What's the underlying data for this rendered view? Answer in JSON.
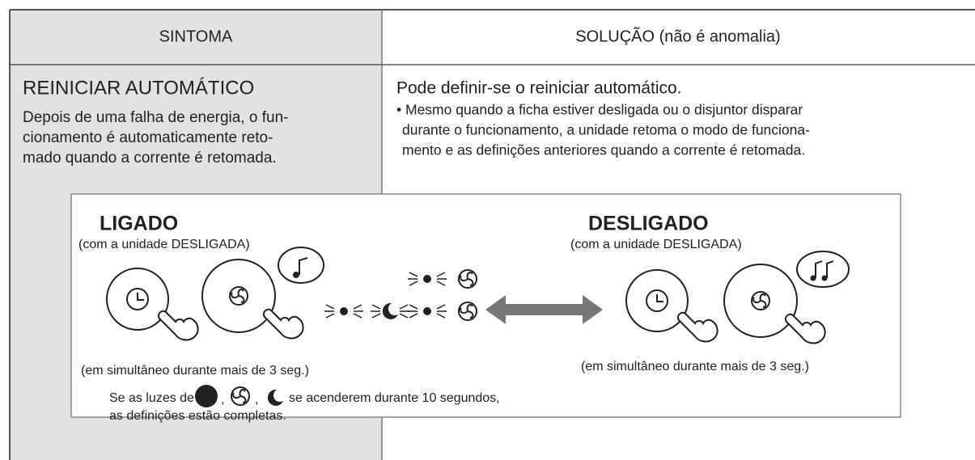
{
  "table": {
    "header": {
      "symptom": "SINTOMA",
      "solution": "SOLUÇÃO (não é anomalia)"
    },
    "symptom": {
      "title": "REINICIAR AUTOMÁTICO",
      "lines": [
        "Depois de uma falha de energia, o fun-",
        "cionamento é automaticamente reto-",
        "mado quando a corrente é retomada."
      ]
    },
    "solution": {
      "title": "Pode definir-se o reiniciar automático.",
      "lines": [
        "• Mesmo quando a ficha estiver desligada ou o disjuntor disparar",
        "durante o funcionamento, a unidade retoma o modo de funciona-",
        "mento e as definições anteriores quando a corrente é retomada."
      ]
    }
  },
  "diagram": {
    "on": {
      "title": "LIGADO",
      "subtitle": "(com a unidade DESLIGADA)",
      "hold": "(em simultâneo durante mais de 3 seg.)"
    },
    "off": {
      "title": "DESLIGADO",
      "subtitle": "(com a unidade DESLIGADA)",
      "hold": "(em simultâneo durante mais de 3 seg.)"
    },
    "note": {
      "before": "Se as luzes de",
      "sep": ",",
      "after": "se acenderem durante 10 segundos,",
      "line2": "as definições estão completas."
    }
  }
}
